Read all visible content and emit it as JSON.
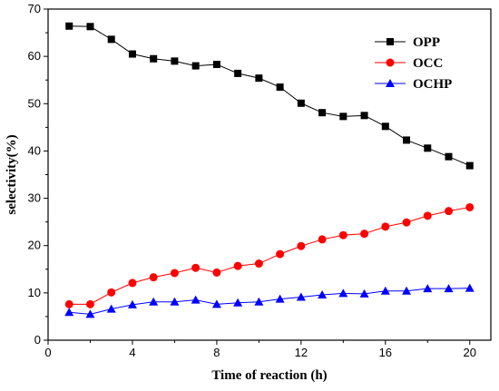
{
  "chart_data": {
    "type": "line",
    "xlabel": "Time of reaction (h)",
    "ylabel": "selectivity(%)",
    "xlim": [
      0,
      21
    ],
    "ylim": [
      0,
      70
    ],
    "xticks": [
      0,
      4,
      8,
      12,
      16,
      20
    ],
    "yticks": [
      0,
      10,
      20,
      30,
      40,
      50,
      60,
      70
    ],
    "x": [
      1,
      2,
      3,
      4,
      5,
      6,
      7,
      8,
      9,
      10,
      11,
      12,
      13,
      14,
      15,
      16,
      17,
      18,
      19,
      20
    ],
    "grid": false,
    "legend_position": "top-right",
    "series": [
      {
        "name": "OPP",
        "color": "#000000",
        "marker": "square",
        "values": [
          66.4,
          66.3,
          63.6,
          60.5,
          59.5,
          59.0,
          58.0,
          58.3,
          56.4,
          55.4,
          53.5,
          50.1,
          48.1,
          47.3,
          47.5,
          45.2,
          42.3,
          40.6,
          38.8,
          36.9
        ]
      },
      {
        "name": "OCC",
        "color": "#ff0000",
        "marker": "circle",
        "values": [
          7.6,
          7.6,
          10.1,
          12.1,
          13.3,
          14.2,
          15.3,
          14.3,
          15.7,
          16.2,
          18.2,
          19.9,
          21.3,
          22.2,
          22.5,
          24.0,
          24.9,
          26.3,
          27.3,
          28.1
        ]
      },
      {
        "name": "OCHP",
        "color": "#0000ff",
        "marker": "triangle",
        "values": [
          5.9,
          5.5,
          6.6,
          7.5,
          8.1,
          8.1,
          8.5,
          7.6,
          7.9,
          8.1,
          8.7,
          9.1,
          9.6,
          9.9,
          9.8,
          10.4,
          10.4,
          10.9,
          10.9,
          11.0
        ]
      }
    ]
  }
}
